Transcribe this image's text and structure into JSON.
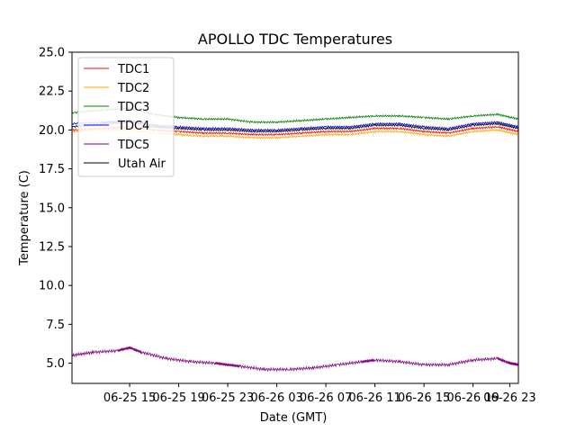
{
  "chart_data": {
    "type": "line",
    "title": "APOLLO TDC Temperatures",
    "xlabel": "Date (GMT)",
    "ylabel": "Temperature (C)",
    "xlim_hours": [
      -4.7,
      31.7
    ],
    "ylim": [
      3.7,
      25.0
    ],
    "x_reference": "06-25 15",
    "xticks": [
      {
        "hours": 0,
        "label": "06-25 15"
      },
      {
        "hours": 4,
        "label": "06-25 19"
      },
      {
        "hours": 8,
        "label": "06-25 23"
      },
      {
        "hours": 12,
        "label": "06-26 03"
      },
      {
        "hours": 16,
        "label": "06-26 07"
      },
      {
        "hours": 20,
        "label": "06-26 11"
      },
      {
        "hours": 24,
        "label": "06-26 15"
      },
      {
        "hours": 28,
        "label": "06-26 19"
      },
      {
        "hours": 31,
        "label": "06-26 23"
      }
    ],
    "yticks": [
      {
        "value": 5.0,
        "label": "5.0"
      },
      {
        "value": 7.5,
        "label": "7.5"
      },
      {
        "value": 10.0,
        "label": "10.0"
      },
      {
        "value": 12.5,
        "label": "12.5"
      },
      {
        "value": 15.0,
        "label": "15.0"
      },
      {
        "value": 17.5,
        "label": "17.5"
      },
      {
        "value": 20.0,
        "label": "20.0"
      },
      {
        "value": 22.5,
        "label": "22.5"
      },
      {
        "value": 25.0,
        "label": "25.0"
      }
    ],
    "legend_position": "top-left",
    "series": [
      {
        "name": "TDC1",
        "color": "#ff0000",
        "x": [
          -4.7,
          -2,
          0,
          2,
          4,
          6,
          8,
          10,
          12,
          14,
          16,
          18,
          20,
          22,
          24,
          26,
          28,
          30,
          31.7
        ],
        "y": [
          20.0,
          20.1,
          20.2,
          20.0,
          19.9,
          19.8,
          19.8,
          19.7,
          19.7,
          19.8,
          19.9,
          19.9,
          20.1,
          20.1,
          19.9,
          19.8,
          20.1,
          20.2,
          19.9
        ]
      },
      {
        "name": "TDC2",
        "color": "#ffa500",
        "x": [
          -4.7,
          -2,
          0,
          2,
          4,
          6,
          8,
          10,
          12,
          14,
          16,
          18,
          20,
          22,
          24,
          26,
          28,
          30,
          31.7
        ],
        "y": [
          19.9,
          20.0,
          20.0,
          19.8,
          19.7,
          19.6,
          19.6,
          19.5,
          19.5,
          19.6,
          19.7,
          19.7,
          19.9,
          19.9,
          19.7,
          19.6,
          19.9,
          20.0,
          19.7
        ]
      },
      {
        "name": "TDC3",
        "color": "#008000",
        "x": [
          -4.7,
          -2,
          0,
          2,
          4,
          6,
          8,
          10,
          12,
          14,
          16,
          18,
          20,
          22,
          24,
          26,
          28,
          30,
          31.7
        ],
        "y": [
          21.1,
          21.3,
          21.4,
          21.0,
          20.8,
          20.7,
          20.7,
          20.5,
          20.5,
          20.6,
          20.7,
          20.8,
          20.9,
          20.9,
          20.8,
          20.7,
          20.9,
          21.0,
          20.7
        ]
      },
      {
        "name": "TDC4",
        "color": "#0000ff",
        "x": [
          -4.7,
          -2,
          0,
          2,
          4,
          6,
          8,
          10,
          12,
          14,
          16,
          18,
          20,
          22,
          24,
          26,
          28,
          30,
          31.7
        ],
        "y": [
          20.4,
          20.5,
          20.6,
          20.3,
          20.2,
          20.1,
          20.1,
          20.0,
          20.0,
          20.1,
          20.2,
          20.2,
          20.4,
          20.4,
          20.2,
          20.1,
          20.4,
          20.5,
          20.2
        ]
      },
      {
        "name": "TDC5",
        "color": "#800080",
        "x": [
          -4.7,
          -3,
          -1,
          0,
          1,
          3,
          5,
          7,
          8,
          9,
          11,
          13,
          15,
          17,
          19,
          20,
          22,
          24,
          26,
          28,
          30,
          31,
          31.7
        ],
        "y": [
          5.5,
          5.7,
          5.8,
          6.0,
          5.7,
          5.3,
          5.1,
          5.0,
          4.9,
          4.8,
          4.6,
          4.6,
          4.7,
          4.9,
          5.1,
          5.2,
          5.1,
          4.9,
          4.9,
          5.2,
          5.3,
          5.0,
          4.9
        ]
      },
      {
        "name": "Utah Air",
        "color": "#000000",
        "x": [
          -4.7,
          -2,
          0,
          2,
          4,
          6,
          8,
          10,
          12,
          14,
          16,
          18,
          20,
          22,
          24,
          26,
          28,
          30,
          31.7
        ],
        "y": [
          20.2,
          20.4,
          20.5,
          20.2,
          20.1,
          20.0,
          20.0,
          19.9,
          19.9,
          20.0,
          20.1,
          20.1,
          20.3,
          20.3,
          20.1,
          20.0,
          20.3,
          20.4,
          20.1
        ]
      }
    ]
  }
}
